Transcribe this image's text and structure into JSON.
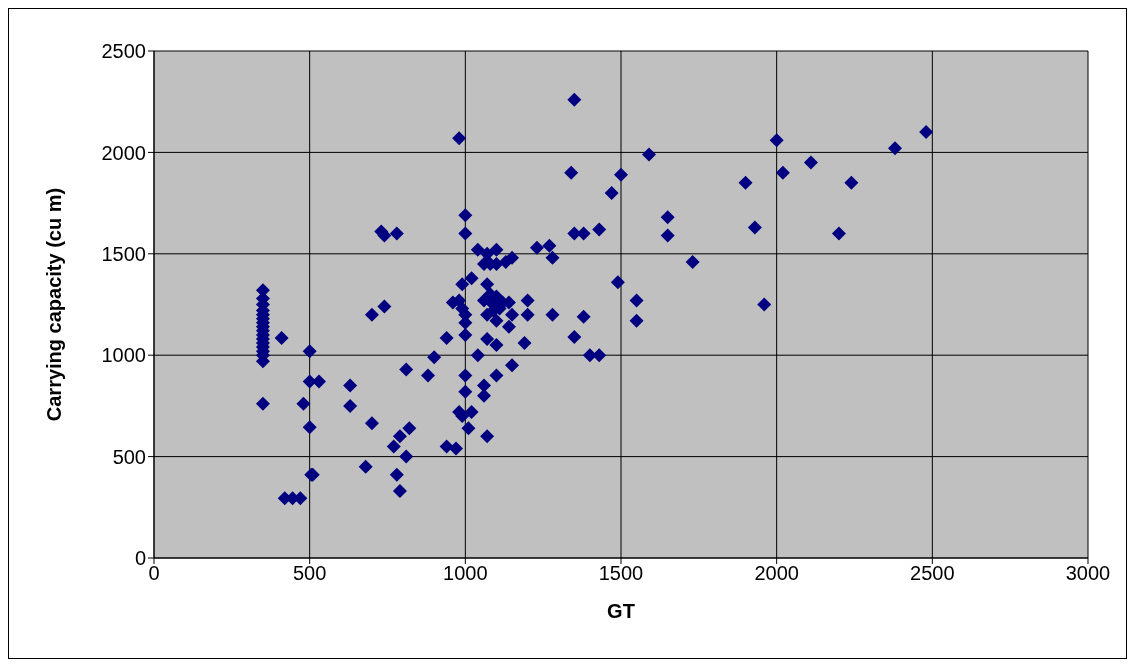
{
  "chart_data": {
    "type": "scatter",
    "xlabel": "GT",
    "ylabel": "Carrying capacity (cu m)",
    "xlim": [
      0,
      3000
    ],
    "xticks": [
      0,
      500,
      1000,
      1500,
      2000,
      2500,
      3000
    ],
    "ylim": [
      0,
      2500
    ],
    "yticks": [
      0,
      500,
      1000,
      1500,
      2000,
      2500
    ],
    "grid": true,
    "legend": false,
    "marker": "diamond",
    "x": [
      350,
      350,
      350,
      350,
      350,
      350,
      350,
      350,
      350,
      350,
      350,
      350,
      350,
      350,
      350,
      350,
      350,
      410,
      420,
      445,
      470,
      480,
      500,
      500,
      500,
      505,
      510,
      530,
      630,
      630,
      680,
      700,
      700,
      730,
      740,
      740,
      770,
      780,
      780,
      790,
      790,
      810,
      810,
      820,
      880,
      900,
      940,
      940,
      960,
      970,
      980,
      980,
      980,
      990,
      990,
      990,
      1000,
      1000,
      1000,
      1000,
      1000,
      1000,
      1000,
      1010,
      1020,
      1020,
      1040,
      1040,
      1060,
      1060,
      1060,
      1060,
      1070,
      1070,
      1070,
      1070,
      1070,
      1080,
      1080,
      1090,
      1090,
      1100,
      1100,
      1100,
      1100,
      1100,
      1100,
      1110,
      1120,
      1130,
      1140,
      1140,
      1150,
      1150,
      1150,
      1190,
      1200,
      1200,
      1230,
      1270,
      1280,
      1280,
      1340,
      1350,
      1350,
      1350,
      1380,
      1380,
      1400,
      1430,
      1430,
      1470,
      1490,
      1500,
      1550,
      1550,
      1590,
      1650,
      1650,
      1730,
      1900,
      1930,
      1960,
      2000,
      2020,
      2110,
      2200,
      2240,
      2380,
      2480
    ],
    "series": [
      {
        "color": "#000080",
        "values": [
          1320,
          1280,
          1250,
          1220,
          1200,
          1180,
          1160,
          1140,
          1120,
          1100,
          1080,
          1060,
          1040,
          1020,
          1000,
          970,
          760,
          1085,
          295,
          295,
          295,
          760,
          1020,
          870,
          645,
          410,
          410,
          870,
          850,
          750,
          450,
          1200,
          665,
          1610,
          1590,
          1240,
          550,
          1600,
          410,
          330,
          600,
          930,
          500,
          640,
          900,
          990,
          1085,
          550,
          1260,
          540,
          2070,
          1270,
          720,
          1230,
          1350,
          700,
          1690,
          1600,
          1200,
          1160,
          1100,
          900,
          820,
          640,
          1380,
          720,
          1000,
          1520,
          1450,
          1270,
          850,
          800,
          1500,
          1350,
          1200,
          1080,
          600,
          1300,
          1450,
          1220,
          1250,
          1520,
          1450,
          1290,
          1170,
          1050,
          900,
          1230,
          1260,
          1460,
          1140,
          1260,
          1480,
          1200,
          950,
          1060,
          1270,
          1200,
          1530,
          1540,
          1480,
          1200,
          1900,
          2260,
          1600,
          1090,
          1600,
          1190,
          1000,
          1620,
          1000,
          1800,
          1360,
          1890,
          1270,
          1170,
          1990,
          1680,
          1590,
          1460,
          1850,
          1630,
          1250,
          2060,
          1900,
          1950,
          1600,
          1850,
          2020,
          2100
        ]
      }
    ]
  }
}
